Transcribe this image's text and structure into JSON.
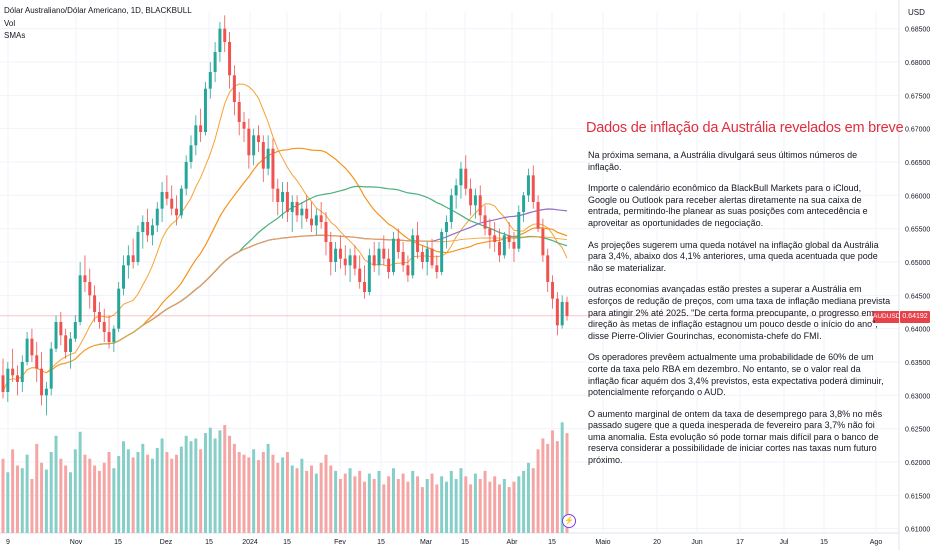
{
  "header": {
    "title": "Dólar Australiano/Dólar Americano, 1D, BLACKBULL",
    "indicator_vol": "Vol",
    "indicator_smas": "SMAs"
  },
  "axis": {
    "currency": "USD"
  },
  "price_badge": {
    "symbol": "AUDUSD",
    "value": "0.64192",
    "color": "#e6424a"
  },
  "flash_icon": "lightning-icon",
  "article": {
    "title": "Dados de inflação da Austrália revelados em breve",
    "paragraphs": [
      "Na próxima semana, a Austrália divulgará seus últimos números de inflação.",
      "Importe o calendário econômico da BlackBull Markets para o iCloud, Google ou Outlook para receber alertas diretamente na sua caixa de entrada, permitindo-lhe planear as suas posições com antecedência e aproveitar as oportunidades de negociação.",
      "As projeções sugerem uma queda notável na inflação global da Austrália para 3,4%, abaixo dos 4,1% anteriores, uma queda acentuada que pode não se materializar.",
      "outras economias avançadas estão prestes a superar a Austrália em esforços de redução de preços, com uma taxa de inflação mediana prevista para atingir 2% até 2025. \"De certa forma preocupante, o progresso em direção às metas de inflação estagnou um pouco desde o início do ano\", disse Pierre-Olivier Gourinchas, economista-chefe do FMI.",
      "Os operadores prevêem actualmente uma probabilidade de 60% de um corte da taxa pelo RBA em dezembro. No entanto, se o valor real da inflação ficar aquém dos 3,4% previstos, esta expectativa poderá diminuir, potencialmente reforçando o AUD.",
      "O aumento marginal de ontem da taxa de desemprego para 3,8% no mês passado sugere que a queda inesperada de fevereiro para 3,7% não foi uma anomalia. Esta evolução só pode tornar mais difícil para o banco de reserva considerar a possibilidade de iniciar cortes nas taxas num futuro próximo."
    ],
    "title_color": "#e0303f"
  },
  "chart_data": {
    "type": "candlestick",
    "title": "Dólar Australiano/Dólar Americano, 1D, BLACKBULL",
    "ylim": [
      0.6095,
      0.6875
    ],
    "y_ticks": [
      "0.68500",
      "0.68000",
      "0.67500",
      "0.67000",
      "0.66500",
      "0.66000",
      "0.65500",
      "0.65000",
      "0.64500",
      "0.64000",
      "0.63500",
      "0.63000",
      "0.62500",
      "0.62000",
      "0.61500",
      "0.61000"
    ],
    "x_tick_labels": [
      "9",
      "Nov",
      "15",
      "Dez",
      "15",
      "2024",
      "15",
      "Fev",
      "15",
      "Mar",
      "15",
      "Abr",
      "15",
      "Maio",
      "20",
      "Jun",
      "17",
      "Jul",
      "15",
      "Ago"
    ],
    "last_price": 0.64192,
    "colors": {
      "up": "#26a69a",
      "down": "#ef5350",
      "sma_short": "#f7a234",
      "sma_mid": "#f7931a",
      "sma_green": "#4caf7d",
      "sma_purple": "#8e6fc7"
    },
    "candles": [
      [
        0.633,
        0.6355,
        0.6295,
        0.6305
      ],
      [
        0.6305,
        0.635,
        0.629,
        0.634
      ],
      [
        0.634,
        0.637,
        0.632,
        0.633
      ],
      [
        0.633,
        0.6345,
        0.63,
        0.632
      ],
      [
        0.632,
        0.636,
        0.6305,
        0.635
      ],
      [
        0.635,
        0.6395,
        0.6345,
        0.6385
      ],
      [
        0.6385,
        0.64,
        0.635,
        0.636
      ],
      [
        0.636,
        0.638,
        0.632,
        0.634
      ],
      [
        0.634,
        0.6365,
        0.6285,
        0.63
      ],
      [
        0.63,
        0.632,
        0.627,
        0.631
      ],
      [
        0.631,
        0.638,
        0.63,
        0.637
      ],
      [
        0.637,
        0.642,
        0.6365,
        0.641
      ],
      [
        0.641,
        0.6425,
        0.6375,
        0.639
      ],
      [
        0.639,
        0.64,
        0.6355,
        0.6365
      ],
      [
        0.6365,
        0.6395,
        0.634,
        0.6385
      ],
      [
        0.6385,
        0.642,
        0.638,
        0.641
      ],
      [
        0.641,
        0.65,
        0.6405,
        0.648
      ],
      [
        0.648,
        0.651,
        0.6455,
        0.647
      ],
      [
        0.647,
        0.649,
        0.643,
        0.645
      ],
      [
        0.645,
        0.6465,
        0.641,
        0.6425
      ],
      [
        0.6425,
        0.644,
        0.64,
        0.641
      ],
      [
        0.641,
        0.643,
        0.638,
        0.6395
      ],
      [
        0.6395,
        0.642,
        0.637,
        0.638
      ],
      [
        0.638,
        0.6405,
        0.6365,
        0.64
      ],
      [
        0.64,
        0.647,
        0.6395,
        0.646
      ],
      [
        0.646,
        0.651,
        0.645,
        0.6495
      ],
      [
        0.6495,
        0.6525,
        0.6475,
        0.651
      ],
      [
        0.651,
        0.6535,
        0.649,
        0.65
      ],
      [
        0.65,
        0.6555,
        0.6495,
        0.6545
      ],
      [
        0.6545,
        0.657,
        0.652,
        0.656
      ],
      [
        0.656,
        0.658,
        0.653,
        0.654
      ],
      [
        0.654,
        0.6565,
        0.6525,
        0.6555
      ],
      [
        0.6555,
        0.659,
        0.6545,
        0.658
      ],
      [
        0.658,
        0.662,
        0.656,
        0.6605
      ],
      [
        0.6605,
        0.663,
        0.6585,
        0.6595
      ],
      [
        0.6595,
        0.6615,
        0.657,
        0.658
      ],
      [
        0.658,
        0.66,
        0.6555,
        0.657
      ],
      [
        0.657,
        0.6615,
        0.6565,
        0.661
      ],
      [
        0.661,
        0.666,
        0.66,
        0.665
      ],
      [
        0.665,
        0.669,
        0.664,
        0.6675
      ],
      [
        0.6675,
        0.672,
        0.666,
        0.6705
      ],
      [
        0.6705,
        0.673,
        0.668,
        0.6695
      ],
      [
        0.6695,
        0.677,
        0.669,
        0.676
      ],
      [
        0.676,
        0.68,
        0.6745,
        0.6785
      ],
      [
        0.6785,
        0.683,
        0.677,
        0.6815
      ],
      [
        0.6815,
        0.686,
        0.68,
        0.685
      ],
      [
        0.685,
        0.687,
        0.6815,
        0.683
      ],
      [
        0.683,
        0.6845,
        0.676,
        0.678
      ],
      [
        0.678,
        0.6795,
        0.672,
        0.674
      ],
      [
        0.674,
        0.6755,
        0.669,
        0.671
      ],
      [
        0.671,
        0.6725,
        0.668,
        0.67
      ],
      [
        0.67,
        0.6715,
        0.664,
        0.666
      ],
      [
        0.666,
        0.67,
        0.6645,
        0.669
      ],
      [
        0.669,
        0.6705,
        0.6665,
        0.668
      ],
      [
        0.668,
        0.669,
        0.662,
        0.664
      ],
      [
        0.664,
        0.669,
        0.663,
        0.667
      ],
      [
        0.667,
        0.6685,
        0.659,
        0.661
      ],
      [
        0.661,
        0.6625,
        0.657,
        0.659
      ],
      [
        0.659,
        0.662,
        0.6565,
        0.6605
      ],
      [
        0.6605,
        0.662,
        0.656,
        0.6575
      ],
      [
        0.6575,
        0.66,
        0.6545,
        0.659
      ],
      [
        0.659,
        0.66,
        0.656,
        0.657
      ],
      [
        0.657,
        0.659,
        0.655,
        0.658
      ],
      [
        0.658,
        0.66,
        0.656,
        0.6565
      ],
      [
        0.6565,
        0.659,
        0.6545,
        0.6555
      ],
      [
        0.6555,
        0.658,
        0.654,
        0.657
      ],
      [
        0.657,
        0.659,
        0.655,
        0.656
      ],
      [
        0.656,
        0.6575,
        0.651,
        0.653
      ],
      [
        0.653,
        0.6545,
        0.648,
        0.65
      ],
      [
        0.65,
        0.653,
        0.6485,
        0.652
      ],
      [
        0.652,
        0.654,
        0.649,
        0.6505
      ],
      [
        0.6505,
        0.6525,
        0.648,
        0.6495
      ],
      [
        0.6495,
        0.652,
        0.647,
        0.651
      ],
      [
        0.651,
        0.6525,
        0.648,
        0.649
      ],
      [
        0.649,
        0.651,
        0.646,
        0.647
      ],
      [
        0.647,
        0.6495,
        0.6445,
        0.6455
      ],
      [
        0.6455,
        0.652,
        0.645,
        0.651
      ],
      [
        0.651,
        0.653,
        0.6485,
        0.6495
      ],
      [
        0.6495,
        0.653,
        0.648,
        0.652
      ],
      [
        0.652,
        0.654,
        0.6495,
        0.6505
      ],
      [
        0.6505,
        0.652,
        0.6475,
        0.6485
      ],
      [
        0.6485,
        0.6545,
        0.648,
        0.6535
      ],
      [
        0.6535,
        0.655,
        0.6505,
        0.6515
      ],
      [
        0.6515,
        0.653,
        0.6485,
        0.6495
      ],
      [
        0.6495,
        0.651,
        0.647,
        0.648
      ],
      [
        0.648,
        0.655,
        0.6475,
        0.654
      ],
      [
        0.654,
        0.656,
        0.6505,
        0.6515
      ],
      [
        0.6515,
        0.6525,
        0.649,
        0.65
      ],
      [
        0.65,
        0.653,
        0.648,
        0.652
      ],
      [
        0.652,
        0.6535,
        0.649,
        0.6495
      ],
      [
        0.6495,
        0.651,
        0.6475,
        0.6485
      ],
      [
        0.6485,
        0.655,
        0.648,
        0.6545
      ],
      [
        0.6545,
        0.657,
        0.652,
        0.656
      ],
      [
        0.656,
        0.661,
        0.655,
        0.66
      ],
      [
        0.66,
        0.6625,
        0.658,
        0.6615
      ],
      [
        0.6615,
        0.665,
        0.6595,
        0.664
      ],
      [
        0.664,
        0.666,
        0.66,
        0.661
      ],
      [
        0.661,
        0.6625,
        0.657,
        0.6585
      ],
      [
        0.6585,
        0.661,
        0.6565,
        0.66
      ],
      [
        0.66,
        0.6615,
        0.656,
        0.657
      ],
      [
        0.657,
        0.6585,
        0.654,
        0.655
      ],
      [
        0.655,
        0.6565,
        0.652,
        0.654
      ],
      [
        0.654,
        0.656,
        0.6515,
        0.653
      ],
      [
        0.653,
        0.655,
        0.65,
        0.651
      ],
      [
        0.651,
        0.6545,
        0.6505,
        0.654
      ],
      [
        0.654,
        0.656,
        0.652,
        0.653
      ],
      [
        0.653,
        0.6545,
        0.65,
        0.652
      ],
      [
        0.652,
        0.6585,
        0.6515,
        0.6575
      ],
      [
        0.6575,
        0.6605,
        0.656,
        0.66
      ],
      [
        0.66,
        0.664,
        0.659,
        0.663
      ],
      [
        0.663,
        0.6645,
        0.658,
        0.659
      ],
      [
        0.659,
        0.66,
        0.6545,
        0.655
      ],
      [
        0.655,
        0.6565,
        0.65,
        0.651
      ],
      [
        0.651,
        0.652,
        0.6455,
        0.647
      ],
      [
        0.647,
        0.648,
        0.643,
        0.6445
      ],
      [
        0.6445,
        0.6455,
        0.639,
        0.6405
      ],
      [
        0.6405,
        0.645,
        0.64,
        0.644
      ],
      [
        0.644,
        0.6448,
        0.6412,
        0.64192
      ]
    ],
    "volume": [
      0.55,
      0.45,
      0.62,
      0.5,
      0.48,
      0.58,
      0.4,
      0.66,
      0.52,
      0.47,
      0.6,
      0.72,
      0.55,
      0.5,
      0.45,
      0.62,
      0.75,
      0.58,
      0.55,
      0.5,
      0.46,
      0.52,
      0.6,
      0.48,
      0.57,
      0.68,
      0.62,
      0.56,
      0.6,
      0.66,
      0.58,
      0.55,
      0.63,
      0.7,
      0.6,
      0.55,
      0.58,
      0.64,
      0.72,
      0.68,
      0.7,
      0.62,
      0.74,
      0.78,
      0.7,
      0.76,
      0.8,
      0.72,
      0.66,
      0.6,
      0.58,
      0.56,
      0.62,
      0.54,
      0.6,
      0.66,
      0.58,
      0.52,
      0.56,
      0.6,
      0.5,
      0.48,
      0.55,
      0.46,
      0.5,
      0.44,
      0.52,
      0.58,
      0.5,
      0.46,
      0.4,
      0.44,
      0.48,
      0.42,
      0.46,
      0.38,
      0.44,
      0.4,
      0.46,
      0.36,
      0.42,
      0.48,
      0.4,
      0.44,
      0.38,
      0.46,
      0.42,
      0.34,
      0.4,
      0.44,
      0.36,
      0.42,
      0.38,
      0.46,
      0.4,
      0.48,
      0.42,
      0.36,
      0.44,
      0.4,
      0.46,
      0.38,
      0.42,
      0.36,
      0.4,
      0.34,
      0.38,
      0.42,
      0.46,
      0.52,
      0.48,
      0.62,
      0.7,
      0.66,
      0.76,
      0.68,
      0.82,
      0.74
    ]
  }
}
